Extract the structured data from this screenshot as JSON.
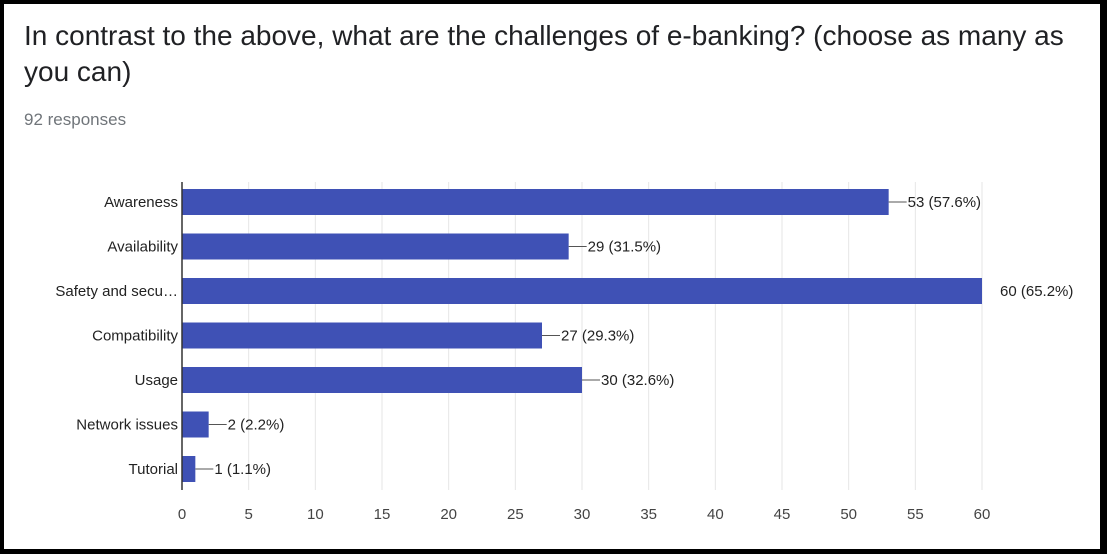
{
  "question": "In contrast to the above, what are the challenges of e-banking? (choose as many as you can)",
  "responses": "92 responses",
  "colors": {
    "bar": "#3f51b5",
    "grid": "#e6e6e6",
    "axis": "#333333"
  },
  "chart_data": {
    "type": "bar",
    "orientation": "horizontal",
    "categories": [
      "Awareness",
      "Availability",
      "Safety and secu…",
      "Compatibility",
      "Usage",
      "Network issues",
      "Tutorial"
    ],
    "values": [
      53,
      29,
      60,
      27,
      30,
      2,
      1
    ],
    "data_labels": [
      "53 (57.6%)",
      "29 (31.5%)",
      "60 (65.2%)",
      "27 (29.3%)",
      "30 (32.6%)",
      "2 (2.2%)",
      "1 (1.1%)"
    ],
    "xlim": [
      0,
      60
    ],
    "x_ticks": [
      0,
      5,
      10,
      15,
      20,
      25,
      30,
      35,
      40,
      45,
      50,
      55,
      60
    ],
    "grid": true,
    "legend": "none"
  }
}
